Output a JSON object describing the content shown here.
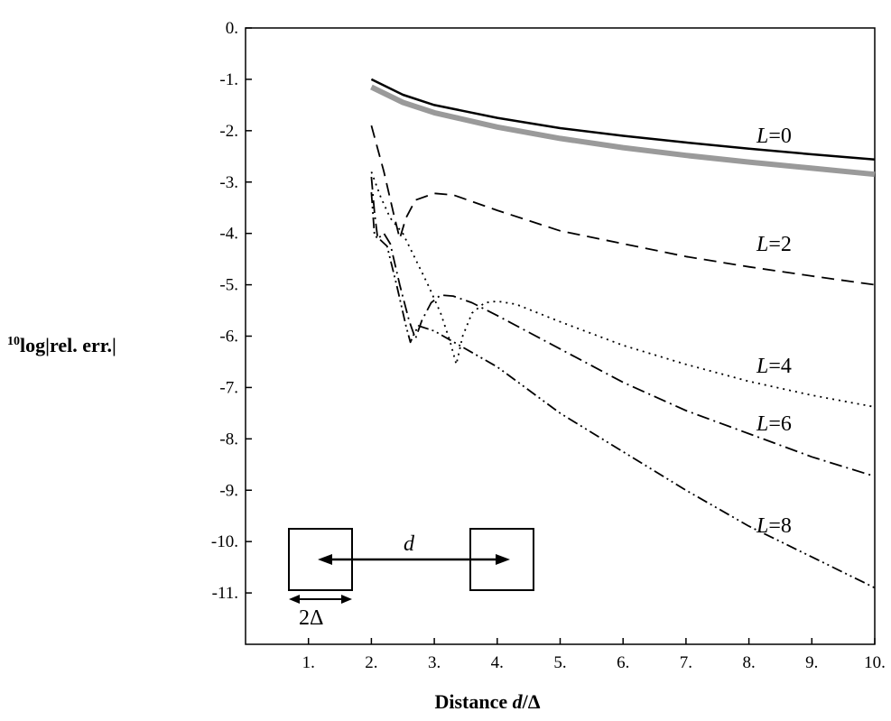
{
  "chart_data": {
    "type": "line",
    "title": "",
    "xlabel": "Distance d/Δ",
    "ylabel": "10log|rel. err.|",
    "xlim": [
      0,
      10
    ],
    "ylim": [
      -12,
      0
    ],
    "grid": false,
    "x_ticks": [
      1,
      2,
      3,
      4,
      5,
      6,
      7,
      8,
      9,
      10
    ],
    "x_tick_labels": [
      "1.",
      "2.",
      "3.",
      "4.",
      "5.",
      "6.",
      "7.",
      "8.",
      "9.",
      "10."
    ],
    "y_ticks": [
      0,
      -1,
      -2,
      -3,
      -4,
      -5,
      -6,
      -7,
      -8,
      -9,
      -10,
      -11
    ],
    "y_tick_labels": [
      "0.",
      "-1.",
      "-2.",
      "-3.",
      "-4.",
      "-5.",
      "-6.",
      "-7.",
      "-8.",
      "-9.",
      "-10.",
      "-11."
    ],
    "series": [
      {
        "name": "L=0",
        "style": "solid",
        "color": "#000000",
        "points": [
          [
            2.0,
            -1.0
          ],
          [
            2.5,
            -1.3
          ],
          [
            3.0,
            -1.5
          ],
          [
            4.0,
            -1.75
          ],
          [
            5.0,
            -1.95
          ],
          [
            6.0,
            -2.1
          ],
          [
            7.0,
            -2.23
          ],
          [
            8.0,
            -2.35
          ],
          [
            9.0,
            -2.46
          ],
          [
            10.0,
            -2.56
          ]
        ]
      },
      {
        "style": "gray-band",
        "color": "#9a9a9a",
        "points": [
          [
            2.0,
            -1.15
          ],
          [
            2.5,
            -1.45
          ],
          [
            3.0,
            -1.65
          ],
          [
            4.0,
            -1.93
          ],
          [
            5.0,
            -2.15
          ],
          [
            6.0,
            -2.33
          ],
          [
            7.0,
            -2.48
          ],
          [
            8.0,
            -2.61
          ],
          [
            9.0,
            -2.73
          ],
          [
            10.0,
            -2.85
          ]
        ]
      },
      {
        "name": "L=2",
        "style": "dashed",
        "color": "#000000",
        "points": [
          [
            2.0,
            -1.9
          ],
          [
            2.2,
            -2.8
          ],
          [
            2.35,
            -3.6
          ],
          [
            2.45,
            -4.1
          ],
          [
            2.55,
            -3.7
          ],
          [
            2.7,
            -3.35
          ],
          [
            3.0,
            -3.22
          ],
          [
            3.3,
            -3.25
          ],
          [
            4.0,
            -3.55
          ],
          [
            5.0,
            -3.95
          ],
          [
            6.0,
            -4.2
          ],
          [
            7.0,
            -4.45
          ],
          [
            8.0,
            -4.65
          ],
          [
            9.0,
            -4.83
          ],
          [
            10.0,
            -5.0
          ]
        ]
      },
      {
        "name": "L=4",
        "style": "dotted",
        "color": "#000000",
        "points": [
          [
            2.0,
            -2.8
          ],
          [
            2.15,
            -3.3
          ],
          [
            2.3,
            -3.7
          ],
          [
            2.5,
            -4.0
          ],
          [
            2.7,
            -4.5
          ],
          [
            2.9,
            -5.0
          ],
          [
            3.1,
            -5.55
          ],
          [
            3.25,
            -6.1
          ],
          [
            3.35,
            -6.55
          ],
          [
            3.45,
            -6.0
          ],
          [
            3.6,
            -5.55
          ],
          [
            3.8,
            -5.35
          ],
          [
            4.0,
            -5.32
          ],
          [
            4.3,
            -5.38
          ],
          [
            5.0,
            -5.72
          ],
          [
            6.0,
            -6.18
          ],
          [
            7.0,
            -6.55
          ],
          [
            8.0,
            -6.88
          ],
          [
            9.0,
            -7.15
          ],
          [
            10.0,
            -7.38
          ]
        ]
      },
      {
        "name": "L=6",
        "style": "dashdot",
        "color": "#000000",
        "points": [
          [
            2.0,
            -2.9
          ],
          [
            2.05,
            -3.6
          ],
          [
            2.1,
            -4.1
          ],
          [
            2.2,
            -4.0
          ],
          [
            2.3,
            -4.2
          ],
          [
            2.45,
            -5.0
          ],
          [
            2.6,
            -5.7
          ],
          [
            2.7,
            -6.05
          ],
          [
            2.8,
            -5.7
          ],
          [
            2.95,
            -5.35
          ],
          [
            3.1,
            -5.2
          ],
          [
            3.3,
            -5.22
          ],
          [
            3.6,
            -5.35
          ],
          [
            4.0,
            -5.6
          ],
          [
            5.0,
            -6.25
          ],
          [
            6.0,
            -6.9
          ],
          [
            7.0,
            -7.45
          ],
          [
            8.0,
            -7.9
          ],
          [
            9.0,
            -8.35
          ],
          [
            10.0,
            -8.73
          ]
        ]
      },
      {
        "name": "L=8",
        "style": "dashdotdot",
        "color": "#000000",
        "points": [
          [
            2.0,
            -3.2
          ],
          [
            2.05,
            -4.05
          ],
          [
            2.12,
            -4.1
          ],
          [
            2.25,
            -4.25
          ],
          [
            2.4,
            -5.0
          ],
          [
            2.55,
            -5.8
          ],
          [
            2.62,
            -6.12
          ],
          [
            2.68,
            -5.95
          ],
          [
            2.75,
            -5.8
          ],
          [
            3.0,
            -5.9
          ],
          [
            4.0,
            -6.6
          ],
          [
            5.0,
            -7.5
          ],
          [
            6.0,
            -8.25
          ],
          [
            7.0,
            -9.0
          ],
          [
            8.0,
            -9.7
          ],
          [
            9.0,
            -10.3
          ],
          [
            10.0,
            -10.9
          ]
        ]
      }
    ],
    "labels": {
      "L0": "L=0",
      "L2": "L=2",
      "L4": "L=4",
      "L6": "L=6",
      "L8": "L=8"
    },
    "inset": {
      "distance_label": "d",
      "size_label": "2Δ"
    }
  }
}
